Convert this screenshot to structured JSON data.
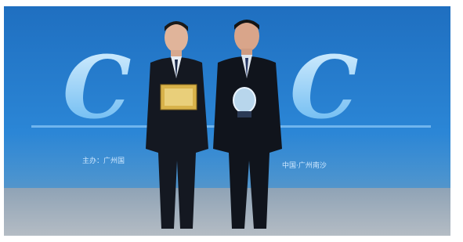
{
  "photo": {
    "backdrop_letters": [
      "C",
      "C"
    ],
    "banner_left": "主办：广州国",
    "banner_right": "中国·广州南沙"
  }
}
